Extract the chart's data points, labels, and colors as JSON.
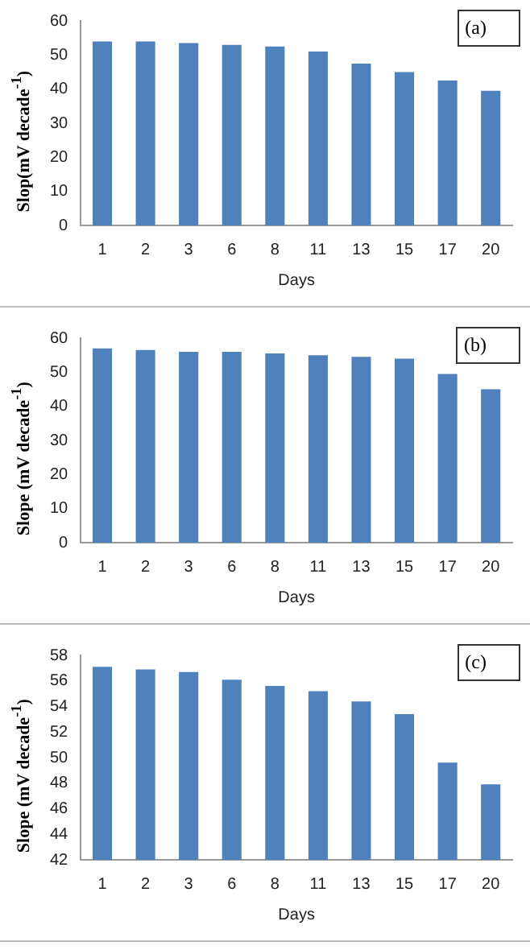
{
  "chart_data": [
    {
      "type": "bar",
      "ylabel": "Slop(mV decade$^{-1}$)",
      "xlabel": "Days",
      "categories": [
        "1",
        "2",
        "3",
        "6",
        "8",
        "11",
        "13",
        "15",
        "17",
        "20"
      ],
      "values": [
        54,
        54,
        53.5,
        53,
        52.5,
        51,
        47.5,
        45,
        42.5,
        39.5
      ],
      "color": "#4f81bd",
      "ylim": [
        0,
        60
      ],
      "yticks": [
        0,
        10,
        20,
        30,
        40,
        50,
        60
      ],
      "annotations": [
        "(a)"
      ]
    },
    {
      "type": "bar",
      "ylabel": "Slope (mV decade$^{-1}$)",
      "xlabel": "Days",
      "categories": [
        "1",
        "2",
        "3",
        "6",
        "8",
        "11",
        "13",
        "15",
        "17",
        "20"
      ],
      "values": [
        57,
        56.5,
        56,
        56,
        55.5,
        55,
        54.5,
        54,
        49.5,
        45
      ],
      "color": "#4f81bd",
      "ylim": [
        0,
        60
      ],
      "yticks": [
        0,
        10,
        20,
        30,
        40,
        50,
        60
      ],
      "annotations": [
        "(b)"
      ]
    },
    {
      "type": "bar",
      "ylabel": "Slope (mV decade$^{-1}$)",
      "xlabel": "Days",
      "categories": [
        "1",
        "2",
        "3",
        "6",
        "8",
        "11",
        "13",
        "15",
        "17",
        "20"
      ],
      "values": [
        57.1,
        56.9,
        56.7,
        56.1,
        55.6,
        55.2,
        54.4,
        53.4,
        49.6,
        47.9
      ],
      "color": "#4f81bd",
      "ylim": [
        42,
        58
      ],
      "yticks": [
        42,
        44,
        46,
        48,
        50,
        52,
        54,
        56,
        58
      ],
      "annotations": [
        "(c)"
      ]
    }
  ]
}
